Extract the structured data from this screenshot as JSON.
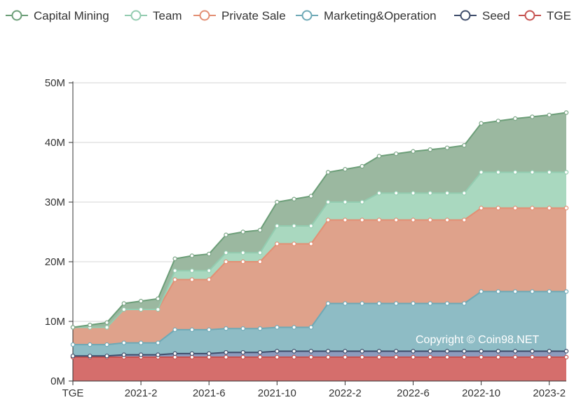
{
  "chart_data": {
    "type": "area",
    "stacked": true,
    "watermark": "Copyright © Coin98.NET",
    "x_tick_labels": [
      "TGE",
      "2021-2",
      "2021-6",
      "2021-10",
      "2022-2",
      "2022-6",
      "2022-10",
      "2023-2"
    ],
    "x_tick_months": [
      0,
      4,
      8,
      12,
      16,
      20,
      24,
      28
    ],
    "y_tick_labels": [
      "0M",
      "10M",
      "20M",
      "30M",
      "40M",
      "50M"
    ],
    "ylim": [
      0,
      50
    ],
    "y_unit": "M",
    "months": [
      0,
      1,
      2,
      3,
      4,
      5,
      6,
      7,
      8,
      9,
      10,
      11,
      12,
      13,
      14,
      15,
      16,
      17,
      18,
      19,
      20,
      21,
      22,
      23,
      24,
      25,
      26,
      27,
      28,
      29
    ],
    "cumulative": {
      "TGE": [
        4,
        4,
        4,
        4,
        4,
        4,
        4,
        4,
        4,
        4,
        4,
        4,
        4,
        4,
        4,
        4,
        4,
        4,
        4,
        4,
        4,
        4,
        4,
        4,
        4,
        4,
        4,
        4,
        4,
        4
      ],
      "Seed": [
        4.2,
        4.2,
        4.2,
        4.4,
        4.4,
        4.4,
        4.6,
        4.6,
        4.6,
        4.8,
        4.8,
        4.8,
        5,
        5,
        5,
        5,
        5,
        5,
        5,
        5,
        5,
        5,
        5,
        5,
        5,
        5,
        5,
        5,
        5,
        5
      ],
      "Marketing&Operation": [
        6.1,
        6.1,
        6.1,
        6.4,
        6.4,
        6.4,
        8.6,
        8.6,
        8.6,
        8.8,
        8.8,
        8.8,
        9,
        9,
        9,
        13,
        13,
        13,
        13,
        13,
        13,
        13,
        13,
        13,
        15,
        15,
        15,
        15,
        15,
        15
      ],
      "Private Sale": [
        9,
        9,
        9,
        12,
        12,
        12,
        17,
        17,
        17,
        20,
        20,
        20,
        23,
        23,
        23,
        27,
        27,
        27,
        27,
        27,
        27,
        27,
        27,
        27,
        29,
        29,
        29,
        29,
        29,
        29
      ],
      "Team": [
        9,
        9,
        9,
        12,
        12,
        12,
        18.5,
        18.5,
        18.5,
        21.5,
        21.5,
        21.5,
        26,
        26,
        26,
        30,
        30,
        30,
        31.5,
        31.5,
        31.5,
        31.5,
        31.5,
        31.5,
        35,
        35,
        35,
        35,
        35,
        35
      ],
      "Capital Mining": [
        9,
        9.4,
        9.8,
        13,
        13.4,
        13.8,
        20.5,
        21,
        21.3,
        24.5,
        25,
        25.3,
        30,
        30.5,
        31,
        35,
        35.5,
        36,
        37.7,
        38.1,
        38.5,
        38.8,
        39.1,
        39.5,
        43.2,
        43.6,
        44,
        44.3,
        44.6,
        45
      ]
    },
    "series": [
      {
        "name": "Capital Mining",
        "fill": "#9bb8a0",
        "line": "#6c9e78",
        "symbol": "#7aa585"
      },
      {
        "name": "Team",
        "fill": "#a9d8bf",
        "line": "#93ccb0",
        "symbol": "#93ccb0"
      },
      {
        "name": "Private Sale",
        "fill": "#dfa28b",
        "line": "#e38f74",
        "symbol": "#e38f74"
      },
      {
        "name": "Marketing&Operation",
        "fill": "#8ebcc5",
        "line": "#6ea9b6",
        "symbol": "#6ea9b6"
      },
      {
        "name": "Seed",
        "fill": "#8d9bbd",
        "line": "#3f4d6b",
        "symbol": "#3f4d6b"
      },
      {
        "name": "TGE",
        "fill": "#d56e6c",
        "line": "#c65250",
        "symbol": "#c65250"
      }
    ],
    "stack_order": [
      "TGE",
      "Seed",
      "Marketing&Operation",
      "Private Sale",
      "Team",
      "Capital Mining"
    ],
    "grid": "horizontal",
    "legend_position": "top"
  }
}
